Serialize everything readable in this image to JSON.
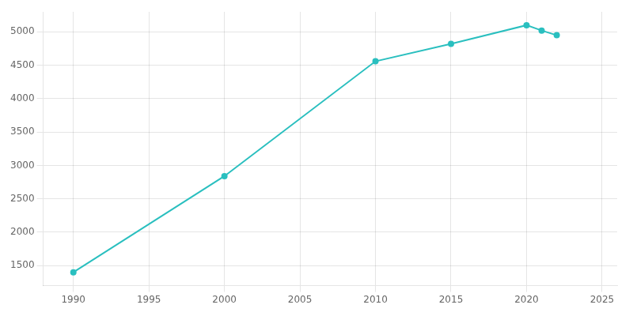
{
  "chart_data": {
    "type": "line",
    "x": [
      1990,
      2000,
      2010,
      2015,
      2020,
      2021,
      2022
    ],
    "values": [
      1400,
      2840,
      4560,
      4820,
      5100,
      5020,
      4950
    ],
    "color": "#2abfbf",
    "marker": "o",
    "xlim": [
      1988,
      2026
    ],
    "ylim": [
      1200,
      5300
    ],
    "xticks": [
      1990,
      1995,
      2000,
      2005,
      2010,
      2015,
      2020,
      2025
    ],
    "yticks": [
      1500,
      2000,
      2500,
      3000,
      3500,
      4000,
      4500,
      5000
    ],
    "grid": true
  }
}
